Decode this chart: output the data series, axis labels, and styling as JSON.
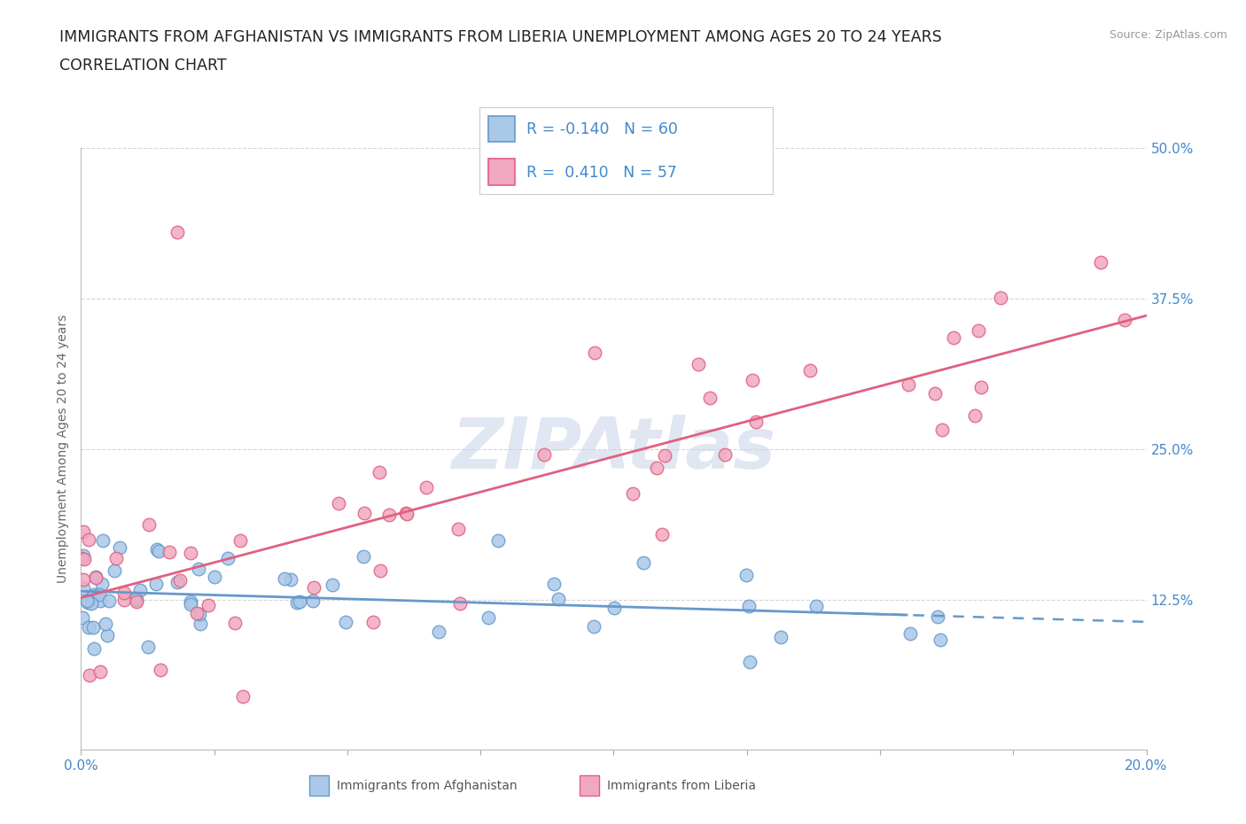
{
  "title_line1": "IMMIGRANTS FROM AFGHANISTAN VS IMMIGRANTS FROM LIBERIA UNEMPLOYMENT AMONG AGES 20 TO 24 YEARS",
  "title_line2": "CORRELATION CHART",
  "source_text": "Source: ZipAtlas.com",
  "ylabel": "Unemployment Among Ages 20 to 24 years",
  "xlim": [
    0.0,
    0.2
  ],
  "ylim": [
    0.0,
    0.5
  ],
  "afghanistan_color": "#aac8e8",
  "liberia_color": "#f0a8c0",
  "afghanistan_line_color": "#6699cc",
  "liberia_line_color": "#e06080",
  "afghanistan_R": -0.14,
  "afghanistan_N": 60,
  "liberia_R": 0.41,
  "liberia_N": 57,
  "title_fontsize": 12.5,
  "axis_label_fontsize": 10,
  "tick_fontsize": 11,
  "watermark_text": "ZIPAtlas",
  "watermark_color": "#c8d4e8",
  "tick_label_color": "#4488cc",
  "background_color": "#ffffff",
  "grid_color": "#bbbbbb",
  "source_color": "#999999",
  "legend_text_color": "#4488cc",
  "bottom_legend_color": "#555555"
}
